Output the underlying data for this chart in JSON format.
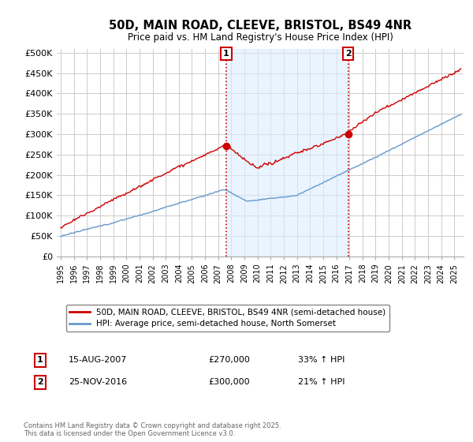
{
  "title": "50D, MAIN ROAD, CLEEVE, BRISTOL, BS49 4NR",
  "subtitle": "Price paid vs. HM Land Registry's House Price Index (HPI)",
  "legend_entry1": "50D, MAIN ROAD, CLEEVE, BRISTOL, BS49 4NR (semi-detached house)",
  "legend_entry2": "HPI: Average price, semi-detached house, North Somerset",
  "annotation1_date": "15-AUG-2007",
  "annotation1_price": "£270,000",
  "annotation1_hpi": "33% ↑ HPI",
  "annotation2_date": "25-NOV-2016",
  "annotation2_price": "£300,000",
  "annotation2_hpi": "21% ↑ HPI",
  "footnote": "Contains HM Land Registry data © Crown copyright and database right 2025.\nThis data is licensed under the Open Government Licence v3.0.",
  "line1_color": "#cc0000",
  "line2_color": "#6699cc",
  "shade_color": "#ddeeff",
  "vline_color": "#cc0000",
  "annotation_box_color": "#cc0000",
  "background_color": "#ffffff",
  "grid_color": "#cccccc",
  "ylim": [
    0,
    510000
  ],
  "yticks": [
    0,
    50000,
    100000,
    150000,
    200000,
    250000,
    300000,
    350000,
    400000,
    450000,
    500000
  ],
  "ytick_labels": [
    "£0",
    "£50K",
    "£100K",
    "£150K",
    "£200K",
    "£250K",
    "£300K",
    "£350K",
    "£400K",
    "£450K",
    "£500K"
  ],
  "xlim_start": 1994.7,
  "xlim_end": 2025.7,
  "sale1_x": 2007.62,
  "sale1_y": 270000,
  "sale2_x": 2016.9,
  "sale2_y": 300000
}
